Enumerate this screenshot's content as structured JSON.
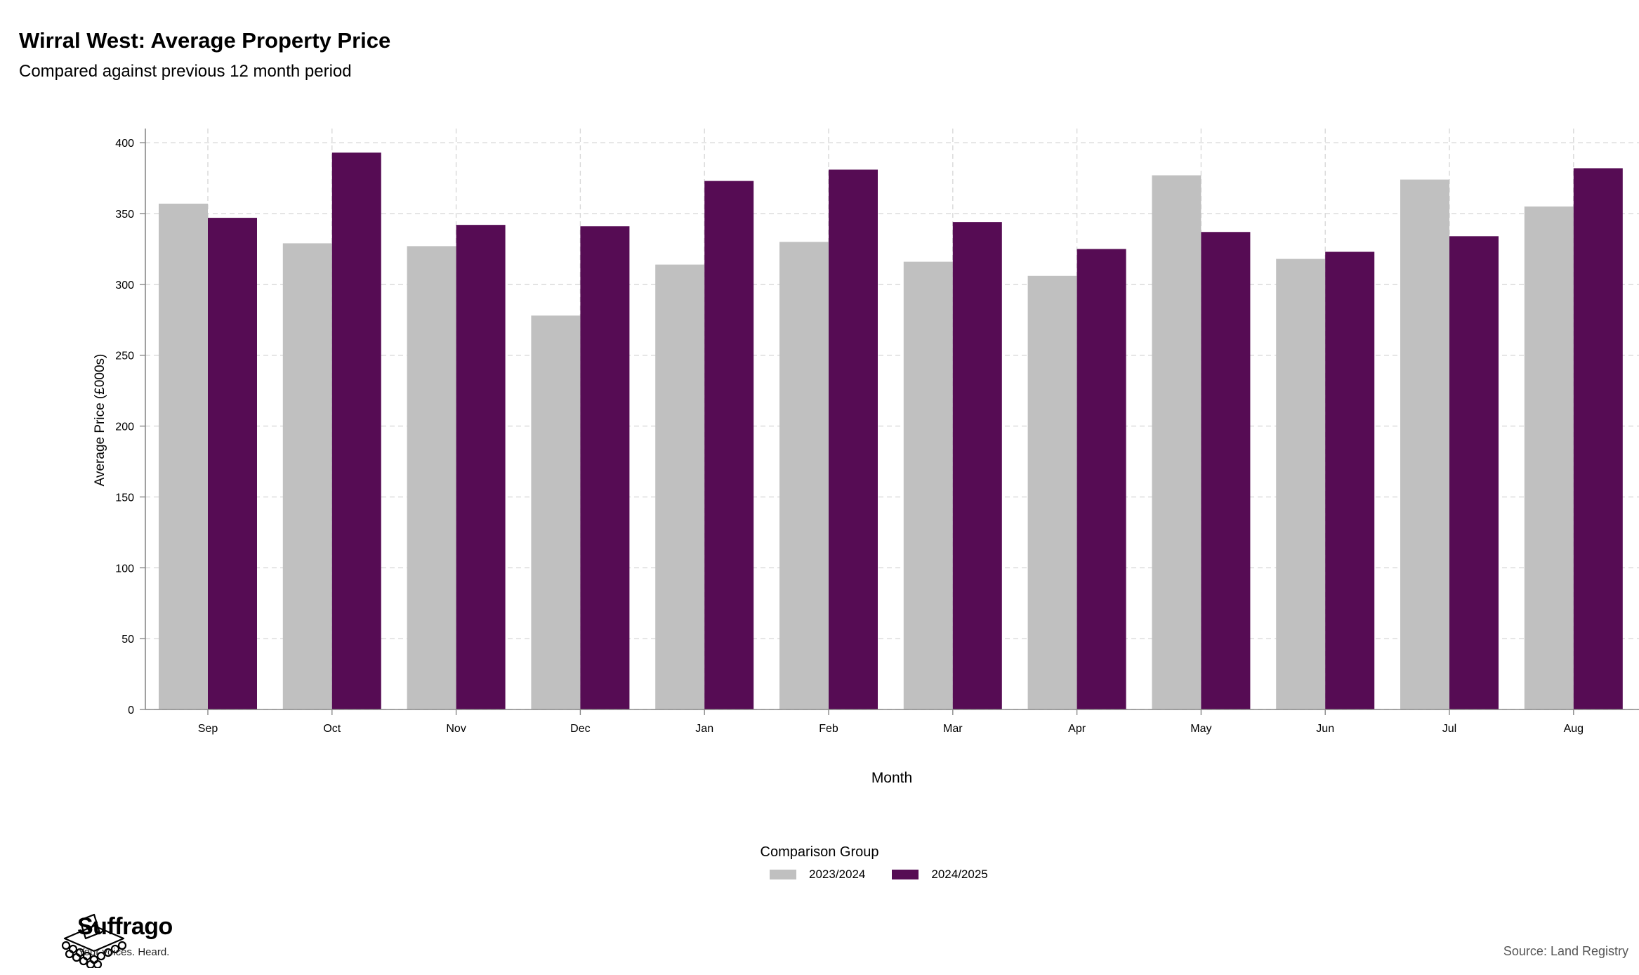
{
  "chart_data": {
    "type": "bar",
    "title": "Wirral West: Average Property Price",
    "subtitle": "Compared against previous 12 month period",
    "xlabel": "Month",
    "ylabel": "Average Price (£000s)",
    "ylim": [
      0,
      410
    ],
    "yticks": [
      0,
      50,
      100,
      150,
      200,
      250,
      300,
      350,
      400
    ],
    "grid": true,
    "legend_title": "Comparison Group",
    "legend_position": "bottom",
    "categories": [
      "Sep",
      "Oct",
      "Nov",
      "Dec",
      "Jan",
      "Feb",
      "Mar",
      "Apr",
      "May",
      "Jun",
      "Jul",
      "Aug"
    ],
    "series": [
      {
        "name": "2023/2024",
        "color": "#c0c0c0",
        "values": [
          357,
          329,
          327,
          278,
          314,
          330,
          316,
          306,
          377,
          318,
          374,
          355
        ]
      },
      {
        "name": "2024/2025",
        "color": "#560c54",
        "values": [
          347,
          393,
          342,
          341,
          373,
          381,
          344,
          325,
          337,
          323,
          334,
          382
        ]
      }
    ],
    "source": "Source: Land Registry"
  },
  "branding": {
    "name": "Suffrago",
    "tagline": "Your voices. Heard.",
    "logo_icon": "ballot-box-icon"
  }
}
